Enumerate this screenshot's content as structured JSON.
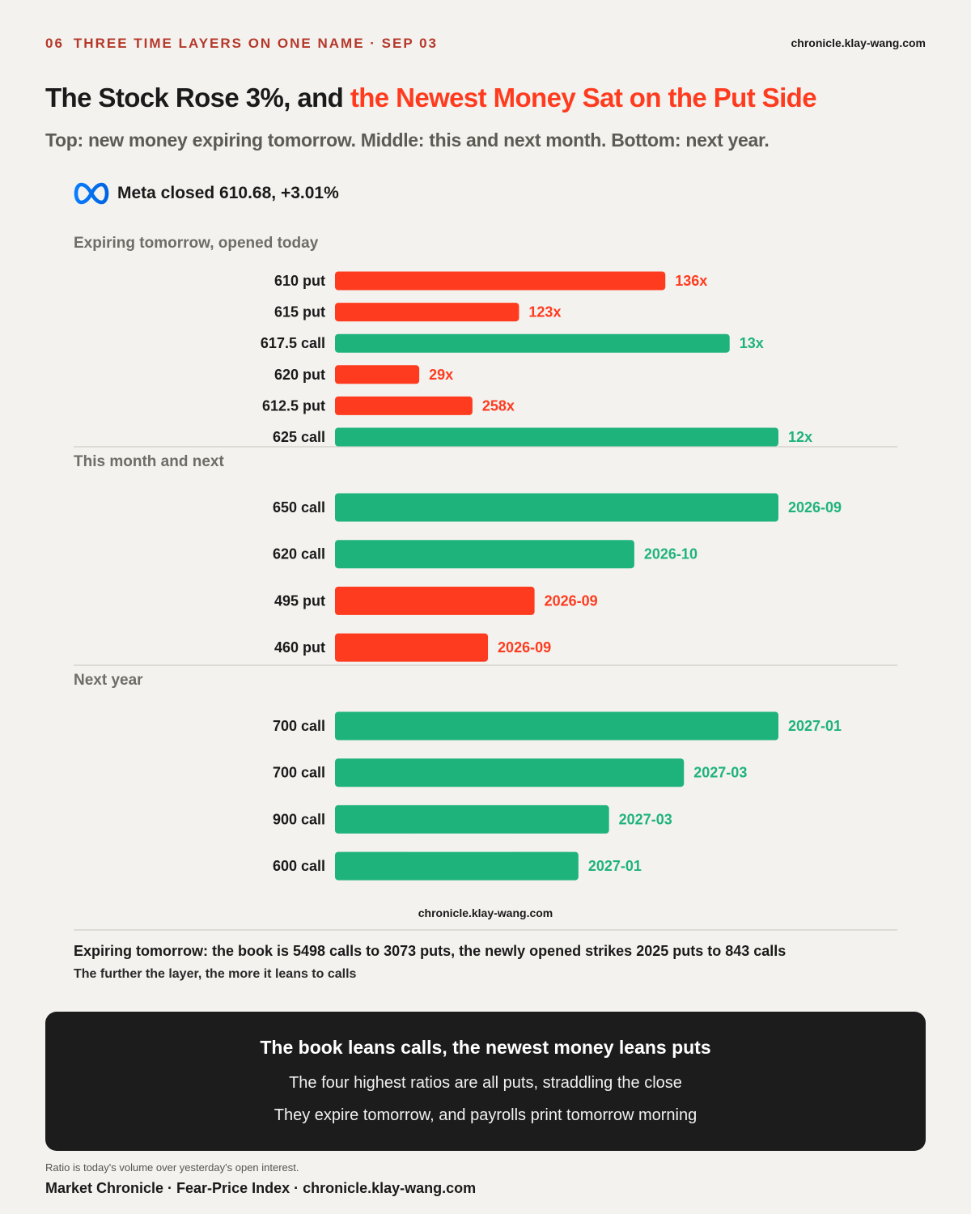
{
  "header": {
    "number": "06",
    "kicker": "THREE TIME LAYERS ON ONE NAME · SEP 03",
    "site": "chronicle.klay-wang.com"
  },
  "title": {
    "lead": "The Stock Rose 3%, and ",
    "highlight": "the Newest Money Sat on the Put Side"
  },
  "subtitle": "Top: new money expiring tomorrow. Middle: this and next month. Bottom: next year.",
  "ticker": {
    "logo": "meta-infinity-logo",
    "text": "Meta closed 610.68, +3.01%"
  },
  "colors": {
    "put": "#ff3b1f",
    "call": "#1fb37c",
    "accent": "#ff3b1f",
    "kicker": "#b5382b"
  },
  "chart_data": [
    {
      "type": "bar",
      "orientation": "horizontal",
      "title": "Expiring tomorrow, opened today",
      "categories": [
        "610 put",
        "615 put",
        "617.5 call",
        "620 put",
        "612.5 put",
        "625 call"
      ],
      "sides": [
        "put",
        "put",
        "call",
        "put",
        "put",
        "call"
      ],
      "values": [
        0.745,
        0.415,
        0.89,
        0.19,
        0.31,
        1.0
      ],
      "labels": [
        "136x",
        "123x",
        "13x",
        "29x",
        "258x",
        "12x"
      ]
    },
    {
      "type": "bar",
      "orientation": "horizontal",
      "title": "This month and next",
      "categories": [
        "650 call",
        "620 call",
        "495 put",
        "460 put"
      ],
      "sides": [
        "call",
        "call",
        "put",
        "put"
      ],
      "values": [
        1.0,
        0.675,
        0.45,
        0.345
      ],
      "labels": [
        "2026-09",
        "2026-10",
        "2026-09",
        "2026-09"
      ]
    },
    {
      "type": "bar",
      "orientation": "horizontal",
      "title": "Next year",
      "categories": [
        "700 call",
        "700 call",
        "900 call",
        "600 call"
      ],
      "sides": [
        "call",
        "call",
        "call",
        "call"
      ],
      "values": [
        1.0,
        0.787,
        0.618,
        0.549
      ],
      "labels": [
        "2027-01",
        "2027-03",
        "2027-03",
        "2027-01"
      ]
    }
  ],
  "chart_site": "chronicle.klay-wang.com",
  "summary": {
    "line": "Expiring tomorrow: the book is 5498 calls to 3073 puts, the newly opened strikes 2025 puts to 843 calls",
    "sub": "The further the layer, the more it leans to calls"
  },
  "callout": {
    "title": "The book leans calls, the newest money leans puts",
    "line1": "The four highest ratios are all puts, straddling the close",
    "line2": "They expire tomorrow, and payrolls print tomorrow morning"
  },
  "method_note": "Ratio is today's volume over yesterday's open interest.",
  "footer": "Market Chronicle · Fear-Price Index · chronicle.klay-wang.com"
}
